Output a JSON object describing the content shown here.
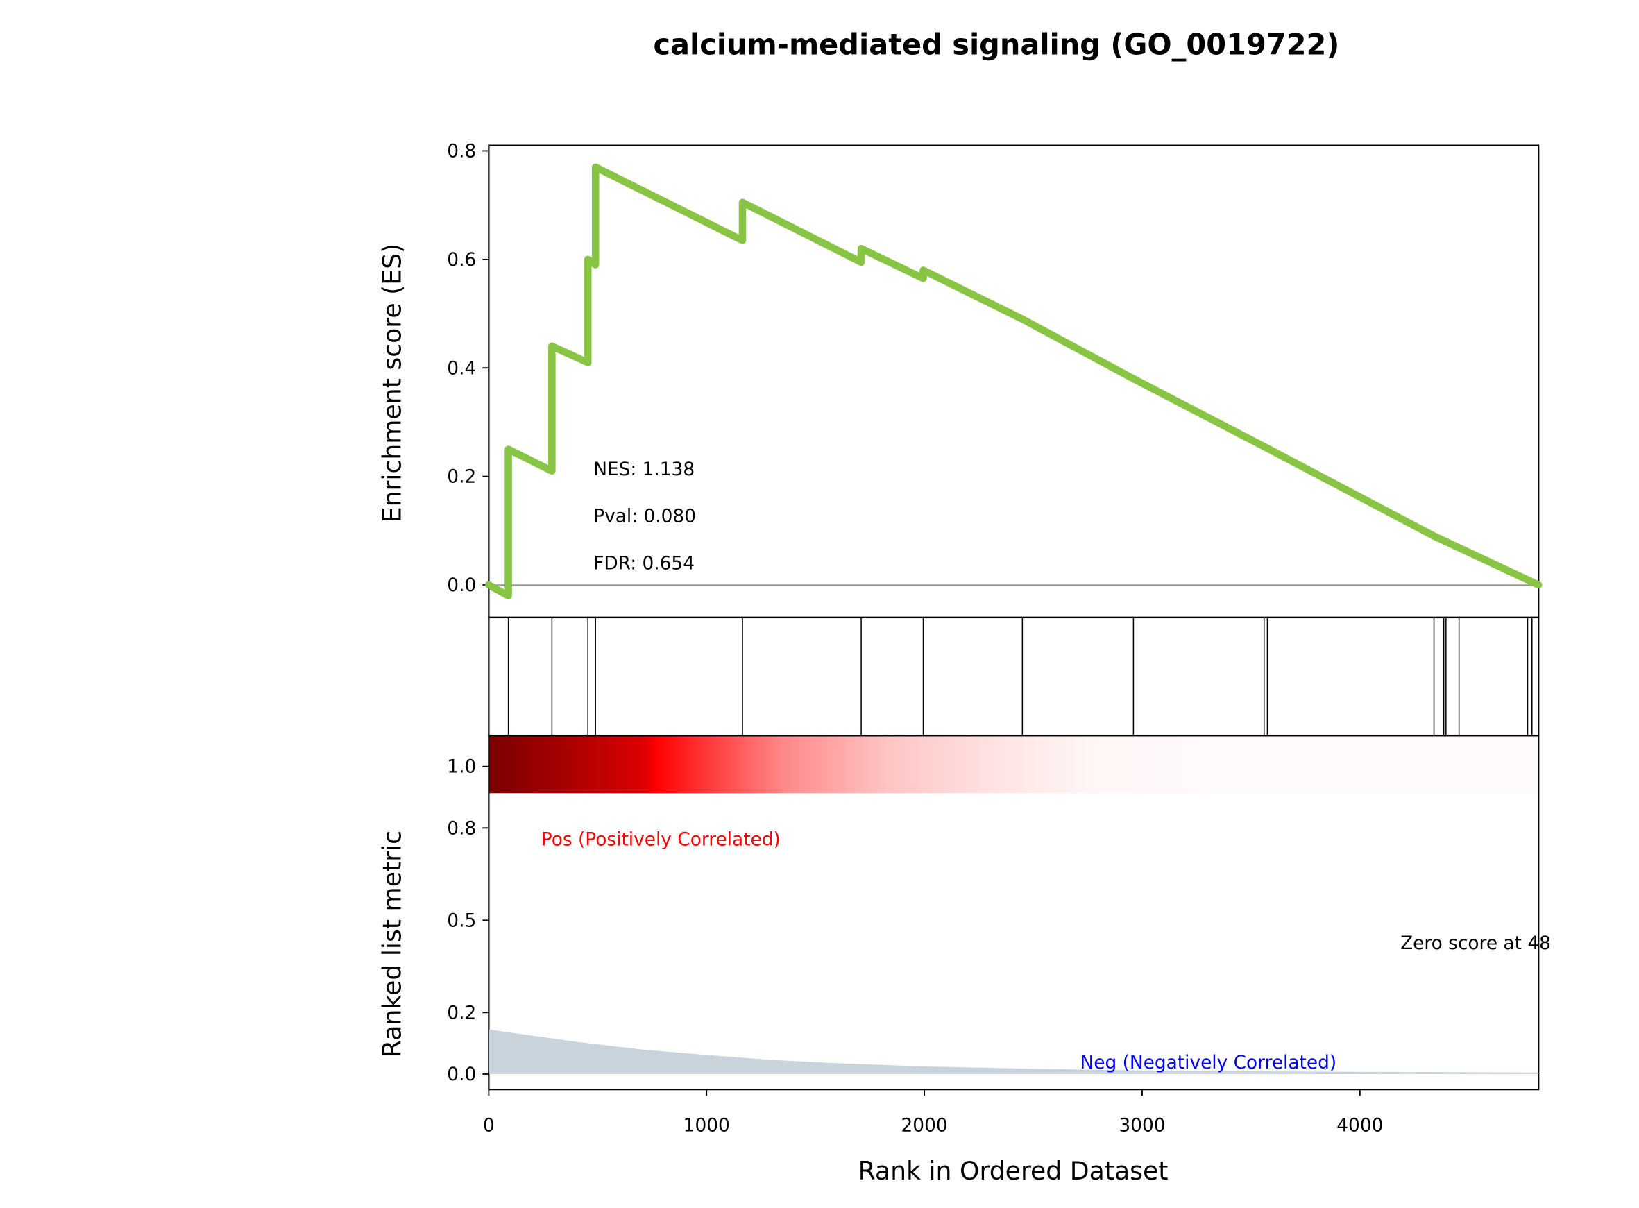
{
  "chart_data": {
    "type": "line",
    "title": "calcium-mediated signaling (GO_0019722)",
    "xlabel": "Rank in Ordered Dataset",
    "xlim": [
      0,
      4820
    ],
    "xticks": [
      "0",
      "1000",
      "2000",
      "3000",
      "4000"
    ],
    "es_panel": {
      "ylabel": "Enrichment score (ES)",
      "ylim": [
        -0.06,
        0.81
      ],
      "yticks": [
        "0.0",
        "0.2",
        "0.4",
        "0.6",
        "0.8"
      ],
      "line_color": "#88c544",
      "series": [
        {
          "x": [
            0,
            90,
            90,
            290,
            290,
            455,
            455,
            490,
            490,
            1165,
            1165,
            1710,
            1710,
            1995,
            1995,
            2450,
            2960,
            3560,
            4340,
            4820
          ],
          "y": [
            0.0,
            -0.02,
            0.25,
            0.21,
            0.44,
            0.41,
            0.6,
            0.59,
            0.77,
            0.635,
            0.705,
            0.595,
            0.62,
            0.565,
            0.58,
            0.49,
            0.38,
            0.255,
            0.09,
            0.0
          ]
        }
      ],
      "annotations": {
        "nes": "NES: 1.138",
        "pval": "Pval: 0.080",
        "fdr": "FDR: 0.654"
      }
    },
    "hits": [
      90,
      290,
      455,
      490,
      1165,
      1710,
      1995,
      2450,
      2960,
      3560,
      3575,
      4340,
      4385,
      4395,
      4455,
      4770,
      4790
    ],
    "rank_panel": {
      "ylabel": "Ranked list metric",
      "ylim": [
        -0.05,
        1.1
      ],
      "yticks": [
        "0.0",
        "0.2",
        "0.5",
        "0.8",
        "1.0"
      ],
      "pos_label": "Pos (Positively Correlated)",
      "neg_label": "Neg (Negatively Correlated)",
      "zero_label": "Zero score at 48",
      "fill_color": "#c9d3dc",
      "curve": {
        "x": [
          0,
          150,
          400,
          700,
          1000,
          1300,
          1600,
          2000,
          2500,
          3000,
          3500,
          4000,
          4500,
          4820
        ],
        "y": [
          0.145,
          0.13,
          0.105,
          0.08,
          0.062,
          0.046,
          0.035,
          0.025,
          0.017,
          0.012,
          0.009,
          0.007,
          0.006,
          0.005
        ]
      }
    }
  }
}
